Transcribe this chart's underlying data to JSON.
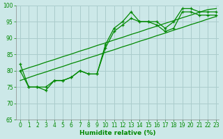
{
  "xlabel": "Humidite relative (%)",
  "ylabel": "",
  "bg_color": "#cce8e8",
  "grid_color": "#aacccc",
  "line_color": "#008800",
  "marker_color": "#008800",
  "xlim_min": -0.5,
  "xlim_max": 23.3,
  "ylim": [
    65,
    100
  ],
  "yticks": [
    65,
    70,
    75,
    80,
    85,
    90,
    95,
    100
  ],
  "xticks": [
    0,
    1,
    2,
    3,
    4,
    5,
    6,
    7,
    8,
    9,
    10,
    11,
    12,
    13,
    14,
    15,
    16,
    17,
    18,
    19,
    20,
    21,
    22,
    23
  ],
  "series_jagged1": [
    82,
    75,
    75,
    74,
    77,
    77,
    78,
    80,
    79,
    79,
    88,
    93,
    95,
    98,
    95,
    95,
    95,
    93,
    95,
    99,
    99,
    98,
    98,
    98
  ],
  "series_jagged2": [
    80,
    75,
    75,
    75,
    77,
    77,
    78,
    80,
    79,
    79,
    87,
    92,
    94,
    96,
    95,
    95,
    94,
    92,
    93,
    98,
    98,
    97,
    97,
    97
  ],
  "series_linear1": [
    80.0,
    80.9,
    81.7,
    82.6,
    83.4,
    84.3,
    85.1,
    86.0,
    86.8,
    87.7,
    88.5,
    89.4,
    90.2,
    91.1,
    91.9,
    92.8,
    93.6,
    94.5,
    95.3,
    96.2,
    97.0,
    97.9,
    98.7,
    99.0
  ],
  "series_linear2": [
    77.0,
    77.9,
    78.8,
    79.6,
    80.5,
    81.3,
    82.2,
    83.0,
    83.9,
    84.7,
    85.6,
    86.4,
    87.3,
    88.1,
    89.0,
    89.8,
    90.7,
    91.5,
    92.4,
    93.2,
    94.1,
    94.9,
    95.8,
    96.6
  ]
}
